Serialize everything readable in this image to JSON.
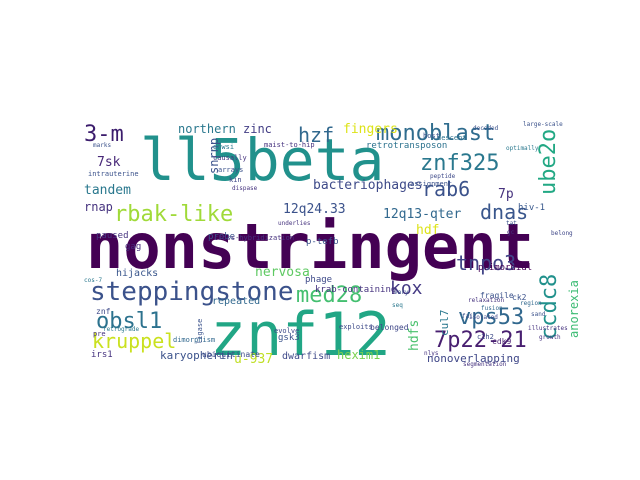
{
  "palette": {
    "dark_purple": "#440154",
    "indigo": "#3b528b",
    "blue": "#31688e",
    "teal": "#21918c",
    "green": "#35b779",
    "lime": "#b5de2b",
    "yellow": "#fde725"
  },
  "words": [
    {
      "text": "nonstringent",
      "color": "#440154"
    },
    {
      "text": "znf12",
      "color": "#21a685"
    },
    {
      "text": "ll5beta",
      "color": "#21918c"
    },
    {
      "text": "steppingstone",
      "color": "#3b528b"
    },
    {
      "text": "monoblast",
      "color": "#2f6c8e"
    },
    {
      "text": "3-m",
      "color": "#3b1c6c"
    },
    {
      "text": "znf325",
      "color": "#2a788e"
    },
    {
      "text": "hzf",
      "color": "#31688e"
    },
    {
      "text": "ube2o",
      "color": "#22a884"
    },
    {
      "text": "rbak-like",
      "color": "#a0da39"
    },
    {
      "text": "rab6",
      "color": "#3b528b"
    },
    {
      "text": "dnas",
      "color": "#39568c"
    },
    {
      "text": "7p",
      "color": "#46327e"
    },
    {
      "text": "med28",
      "color": "#44bf70"
    },
    {
      "text": "kox",
      "color": "#443983"
    },
    {
      "text": "tnpo3",
      "color": "#414487"
    },
    {
      "text": "ccdc8",
      "color": "#21918c"
    },
    {
      "text": "vps53",
      "color": "#31688e"
    },
    {
      "text": "obsl1",
      "color": "#2c728e"
    },
    {
      "text": "kruppel",
      "color": "#cae11f"
    },
    {
      "text": "7p22-21",
      "color": "#481f70"
    },
    {
      "text": "fingers",
      "color": "#dde318"
    },
    {
      "text": "bacteriophages",
      "color": "#3e4a89"
    },
    {
      "text": "12q24.33",
      "color": "#3b528b"
    },
    {
      "text": "12q13-qter",
      "color": "#31688e"
    },
    {
      "text": "northern",
      "color": "#2a788e"
    },
    {
      "text": "zinc",
      "color": "#433e85"
    },
    {
      "text": "tandem",
      "color": "#2a788e"
    },
    {
      "text": "7sk",
      "color": "#482878"
    },
    {
      "text": "rnap",
      "color": "#46337f"
    },
    {
      "text": "snrnp",
      "color": "#3b528b"
    },
    {
      "text": "nervosa",
      "color": "#5ec962"
    },
    {
      "text": "hdf",
      "color": "#dde318"
    },
    {
      "text": "hdfs",
      "color": "#4ac16d"
    },
    {
      "text": "anorexia",
      "color": "#3dbc74"
    },
    {
      "text": "cul7",
      "color": "#2a788e"
    },
    {
      "text": "hexim1",
      "color": "#7ad151"
    },
    {
      "text": "u-937",
      "color": "#c0df25"
    },
    {
      "text": "karyopherin",
      "color": "#3b528b"
    },
    {
      "text": "dwarfism",
      "color": "#3e4989"
    },
    {
      "text": "nonoverlapping",
      "color": "#3f4788"
    },
    {
      "text": "retrotransposon",
      "color": "#2c728e"
    },
    {
      "text": "hijacks",
      "color": "#39568c"
    },
    {
      "text": "repeated",
      "color": "#31688e"
    },
    {
      "text": "paused",
      "color": "#46337f"
    },
    {
      "text": "gag",
      "color": "#472d7b"
    },
    {
      "text": "probe",
      "color": "#3b528b"
    },
    {
      "text": "hiv-1",
      "color": "#38588c"
    },
    {
      "text": "p-tefb",
      "color": "#3b528b"
    },
    {
      "text": "phage",
      "color": "#3e4a89"
    },
    {
      "text": "krab-containing",
      "color": "#46337f"
    },
    {
      "text": "primordial",
      "color": "#440154"
    },
    {
      "text": "irs1",
      "color": "#46337f"
    },
    {
      "text": "gsk3",
      "color": "#3b528b"
    },
    {
      "text": "belonged",
      "color": "#3f4788"
    },
    {
      "text": "ubiquitinate",
      "color": "#3e4a89"
    },
    {
      "text": "cross-hybridization",
      "color": "#46327e"
    },
    {
      "text": "cdk9",
      "color": "#481f70"
    },
    {
      "text": "znf",
      "color": "#3e4a89"
    },
    {
      "text": "fragile",
      "color": "#3b528b"
    },
    {
      "text": "maist-to-hip",
      "color": "#46337f"
    },
    {
      "text": "evolve",
      "color": "#3e4a89"
    },
    {
      "text": "assignment",
      "color": "#3b528b"
    },
    {
      "text": "intrauterine",
      "color": "#3b528b"
    },
    {
      "text": "dimorphism",
      "color": "#31688e"
    },
    {
      "text": "gnwsi",
      "color": "#2a788e"
    },
    {
      "text": "causally",
      "color": "#46337f"
    },
    {
      "text": "arrays",
      "color": "#3b528b"
    },
    {
      "text": "kin",
      "color": "#3f4788"
    },
    {
      "text": "dispase",
      "color": "#46337f"
    },
    {
      "text": "retrograde",
      "color": "#2a788e"
    },
    {
      "text": "ligase",
      "color": "#3b528b"
    },
    {
      "text": "host",
      "color": "#3b528b"
    },
    {
      "text": "descent",
      "color": "#2c728e"
    },
    {
      "text": "peptide",
      "color": "#3e4a89"
    },
    {
      "text": "c2h2",
      "color": "#3e4a89"
    },
    {
      "text": "ck2",
      "color": "#3b528b"
    },
    {
      "text": "exploits",
      "color": "#3e4a89"
    },
    {
      "text": "sand",
      "color": "#3b528b"
    },
    {
      "text": "segmentation",
      "color": "#46337f"
    },
    {
      "text": "cos-7",
      "color": "#2a788e"
    },
    {
      "text": "underlies",
      "color": "#46337f"
    },
    {
      "text": "gc",
      "color": "#46327e"
    },
    {
      "text": "large-scale",
      "color": "#3b528b"
    },
    {
      "text": "optimally",
      "color": "#2a788e"
    },
    {
      "text": "decoded",
      "color": "#3b528b"
    },
    {
      "text": "isolated",
      "color": "#3e4a89"
    },
    {
      "text": "fusion",
      "color": "#31688e"
    },
    {
      "text": "relaxation",
      "color": "#46337f"
    },
    {
      "text": "fail",
      "color": "#3b528b"
    },
    {
      "text": "belong",
      "color": "#3f4788"
    },
    {
      "text": "illustrates",
      "color": "#46337f"
    },
    {
      "text": "marks",
      "color": "#3b528b"
    },
    {
      "text": "region",
      "color": "#31688e"
    },
    {
      "text": "growth",
      "color": "#46337f"
    },
    {
      "text": "vary",
      "color": "#3b528b"
    },
    {
      "text": "pre",
      "color": "#46337f"
    },
    {
      "text": "tat",
      "color": "#3b528b"
    },
    {
      "text": "nlys",
      "color": "#46337f"
    },
    {
      "text": "seq",
      "color": "#2a788e"
    }
  ]
}
